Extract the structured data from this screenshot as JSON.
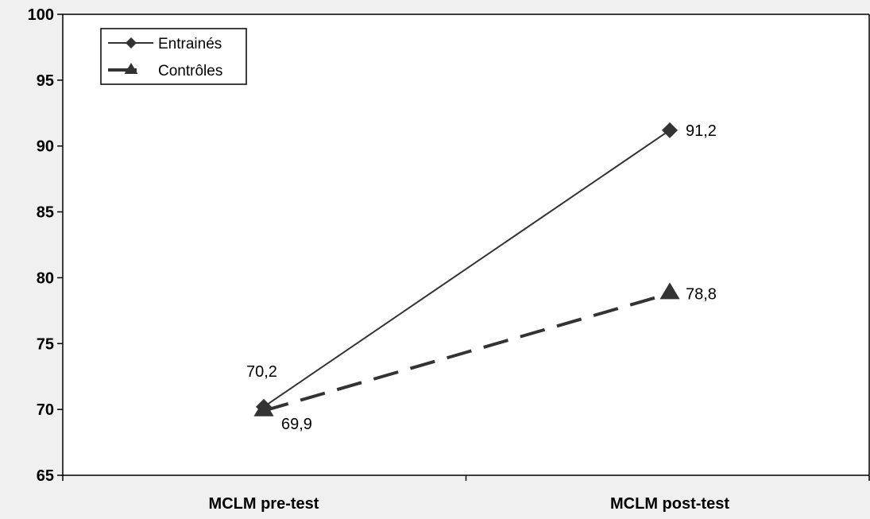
{
  "chart_data": {
    "type": "line",
    "title": "",
    "xlabel": "",
    "ylabel": "",
    "categories": [
      "MCLM pre-test",
      "MCLM post-test"
    ],
    "ylim": [
      65,
      100
    ],
    "yticks": [
      "65",
      "70",
      "75",
      "80",
      "85",
      "90",
      "95",
      "100"
    ],
    "grid": false,
    "legend_position": "top-left",
    "series": [
      {
        "name": "Entrainés",
        "values": [
          70.2,
          91.2
        ],
        "labels": [
          "70,2",
          "91,2"
        ],
        "marker": "diamond",
        "line_style": "solid",
        "color": "#333333"
      },
      {
        "name": "Contrôles",
        "values": [
          69.9,
          78.8
        ],
        "labels": [
          "69,9",
          "78,8"
        ],
        "marker": "triangle",
        "line_style": "dashed",
        "color": "#333333"
      }
    ]
  },
  "colors": {
    "background": "#f0f0f0",
    "plot_background": "#ffffff",
    "axis": "#000000"
  }
}
